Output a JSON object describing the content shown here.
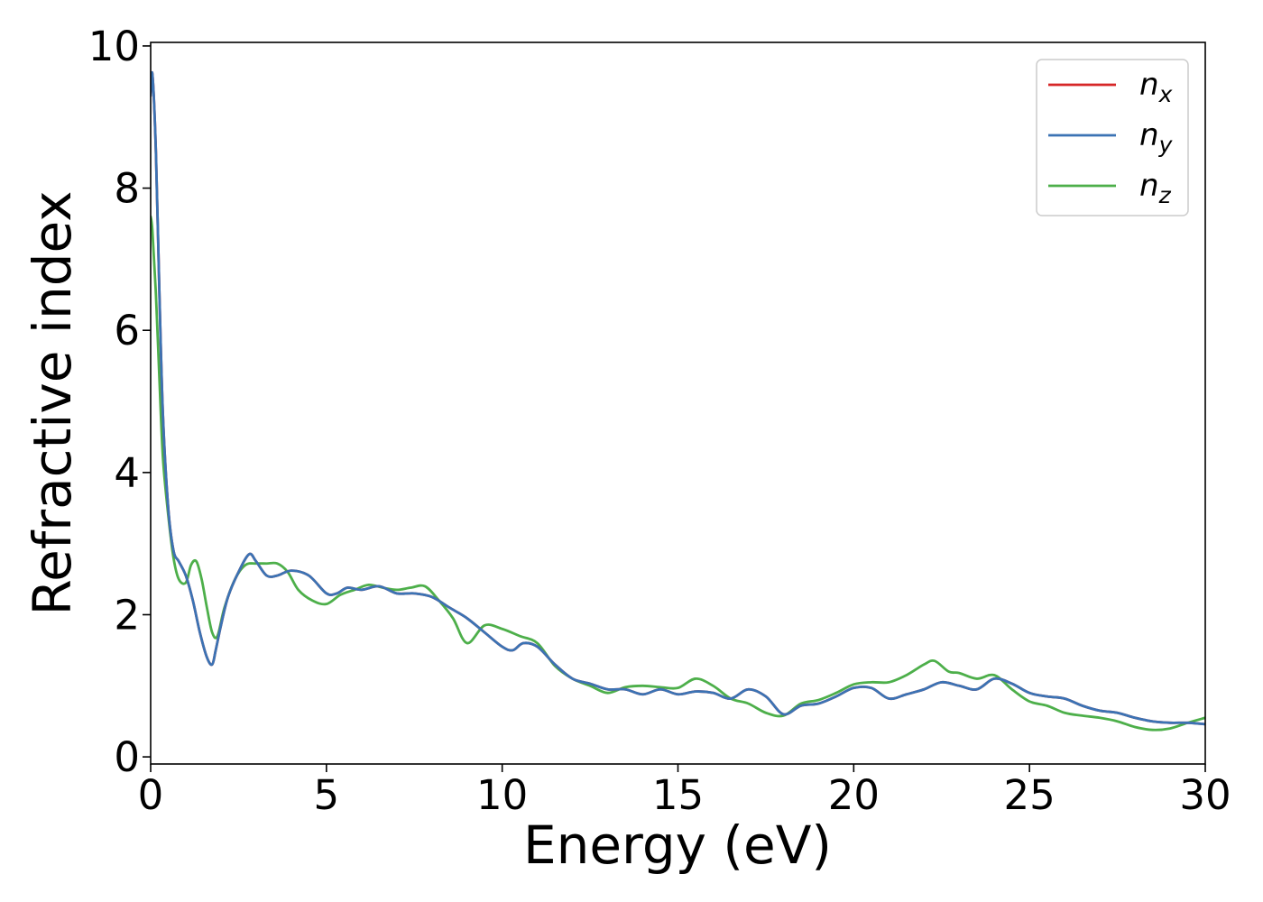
{
  "chart_data": {
    "type": "line",
    "xlabel": "Energy (eV)",
    "ylabel": "Refractive index",
    "xlim": [
      0,
      30
    ],
    "ylim": [
      -0.1,
      10.05
    ],
    "xticks": [
      0,
      5,
      10,
      15,
      20,
      25,
      30
    ],
    "yticks": [
      0,
      2,
      4,
      6,
      8,
      10
    ],
    "grid": false,
    "legend_position": "top-right",
    "series": [
      {
        "name": "n_x",
        "label_main": "n",
        "label_sub": "x",
        "color": "#d62728",
        "x": [
          0,
          0.05,
          0.15,
          0.25,
          0.35,
          0.5,
          0.65,
          0.8,
          1.0,
          1.2,
          1.4,
          1.6,
          1.75,
          1.85,
          2.0,
          2.2,
          2.5,
          2.8,
          3.0,
          3.3,
          3.6,
          4.0,
          4.5,
          5.0,
          5.3,
          5.6,
          6.0,
          6.5,
          7.0,
          7.5,
          8.0,
          8.5,
          9.0,
          9.5,
          10.0,
          10.3,
          10.6,
          11.0,
          11.5,
          12.0,
          12.5,
          13.0,
          13.5,
          14.0,
          14.5,
          15.0,
          15.5,
          16.0,
          16.5,
          17.0,
          17.5,
          18.0,
          18.5,
          19.0,
          19.5,
          20.0,
          20.5,
          21.0,
          21.5,
          22.0,
          22.5,
          23.0,
          23.5,
          24.0,
          24.5,
          25.0,
          25.5,
          26.0,
          26.5,
          27.0,
          27.5,
          28.0,
          28.5,
          29.0,
          29.5,
          30.0
        ],
        "y": [
          9.3,
          9.6,
          8.5,
          6.5,
          4.8,
          3.5,
          2.9,
          2.75,
          2.55,
          2.2,
          1.75,
          1.4,
          1.3,
          1.5,
          1.85,
          2.25,
          2.6,
          2.85,
          2.75,
          2.55,
          2.55,
          2.62,
          2.55,
          2.3,
          2.3,
          2.38,
          2.35,
          2.4,
          2.3,
          2.3,
          2.25,
          2.1,
          1.95,
          1.75,
          1.55,
          1.5,
          1.6,
          1.55,
          1.3,
          1.1,
          1.03,
          0.95,
          0.95,
          0.88,
          0.95,
          0.88,
          0.92,
          0.9,
          0.82,
          0.95,
          0.85,
          0.6,
          0.72,
          0.75,
          0.85,
          0.97,
          0.97,
          0.82,
          0.88,
          0.95,
          1.05,
          1.0,
          0.95,
          1.1,
          1.03,
          0.9,
          0.85,
          0.82,
          0.72,
          0.65,
          0.62,
          0.55,
          0.5,
          0.48,
          0.48,
          0.46
        ]
      },
      {
        "name": "n_y",
        "label_main": "n",
        "label_sub": "y",
        "color": "#3b73b4",
        "x": [
          0,
          0.05,
          0.15,
          0.25,
          0.35,
          0.5,
          0.65,
          0.8,
          1.0,
          1.2,
          1.4,
          1.6,
          1.75,
          1.85,
          2.0,
          2.2,
          2.5,
          2.8,
          3.0,
          3.3,
          3.6,
          4.0,
          4.5,
          5.0,
          5.3,
          5.6,
          6.0,
          6.5,
          7.0,
          7.5,
          8.0,
          8.5,
          9.0,
          9.5,
          10.0,
          10.3,
          10.6,
          11.0,
          11.5,
          12.0,
          12.5,
          13.0,
          13.5,
          14.0,
          14.5,
          15.0,
          15.5,
          16.0,
          16.5,
          17.0,
          17.5,
          18.0,
          18.5,
          19.0,
          19.5,
          20.0,
          20.5,
          21.0,
          21.5,
          22.0,
          22.5,
          23.0,
          23.5,
          24.0,
          24.5,
          25.0,
          25.5,
          26.0,
          26.5,
          27.0,
          27.5,
          28.0,
          28.5,
          29.0,
          29.5,
          30.0
        ],
        "y": [
          9.3,
          9.6,
          8.5,
          6.5,
          4.8,
          3.5,
          2.9,
          2.75,
          2.55,
          2.2,
          1.75,
          1.4,
          1.3,
          1.5,
          1.85,
          2.25,
          2.6,
          2.85,
          2.75,
          2.55,
          2.55,
          2.62,
          2.55,
          2.3,
          2.3,
          2.38,
          2.35,
          2.4,
          2.3,
          2.3,
          2.25,
          2.1,
          1.95,
          1.75,
          1.55,
          1.5,
          1.6,
          1.55,
          1.3,
          1.1,
          1.03,
          0.95,
          0.95,
          0.88,
          0.95,
          0.88,
          0.92,
          0.9,
          0.82,
          0.95,
          0.85,
          0.6,
          0.72,
          0.75,
          0.85,
          0.97,
          0.97,
          0.82,
          0.88,
          0.95,
          1.05,
          1.0,
          0.95,
          1.1,
          1.03,
          0.9,
          0.85,
          0.82,
          0.72,
          0.65,
          0.62,
          0.55,
          0.5,
          0.48,
          0.48,
          0.46
        ]
      },
      {
        "name": "n_z",
        "label_main": "n",
        "label_sub": "z",
        "color": "#4daf4a",
        "x": [
          0,
          0.05,
          0.15,
          0.25,
          0.35,
          0.5,
          0.65,
          0.8,
          1.0,
          1.15,
          1.3,
          1.45,
          1.6,
          1.75,
          1.9,
          2.1,
          2.4,
          2.7,
          3.0,
          3.3,
          3.6,
          3.9,
          4.2,
          4.6,
          5.0,
          5.4,
          5.8,
          6.2,
          6.6,
          7.0,
          7.4,
          7.8,
          8.2,
          8.6,
          9.0,
          9.5,
          10.0,
          10.5,
          11.0,
          11.5,
          12.0,
          12.5,
          13.0,
          13.5,
          14.0,
          14.5,
          15.0,
          15.5,
          16.0,
          16.5,
          17.0,
          17.5,
          18.0,
          18.5,
          19.0,
          19.5,
          20.0,
          20.5,
          21.0,
          21.5,
          22.0,
          22.3,
          22.7,
          23.0,
          23.5,
          24.0,
          24.5,
          25.0,
          25.5,
          26.0,
          26.5,
          27.0,
          27.5,
          28.0,
          28.5,
          29.0,
          29.5,
          30.0
        ],
        "y": [
          7.6,
          7.4,
          6.5,
          5.3,
          4.2,
          3.4,
          2.8,
          2.5,
          2.45,
          2.7,
          2.75,
          2.5,
          2.1,
          1.75,
          1.7,
          2.1,
          2.5,
          2.7,
          2.72,
          2.72,
          2.72,
          2.6,
          2.35,
          2.2,
          2.15,
          2.28,
          2.35,
          2.42,
          2.38,
          2.35,
          2.38,
          2.4,
          2.2,
          1.95,
          1.6,
          1.85,
          1.8,
          1.7,
          1.6,
          1.28,
          1.1,
          1.0,
          0.9,
          0.98,
          1.0,
          0.98,
          0.97,
          1.1,
          1.0,
          0.82,
          0.75,
          0.62,
          0.58,
          0.75,
          0.8,
          0.9,
          1.02,
          1.05,
          1.05,
          1.15,
          1.3,
          1.35,
          1.2,
          1.18,
          1.1,
          1.15,
          0.95,
          0.78,
          0.72,
          0.62,
          0.58,
          0.55,
          0.5,
          0.42,
          0.38,
          0.4,
          0.48,
          0.55
        ]
      }
    ]
  }
}
